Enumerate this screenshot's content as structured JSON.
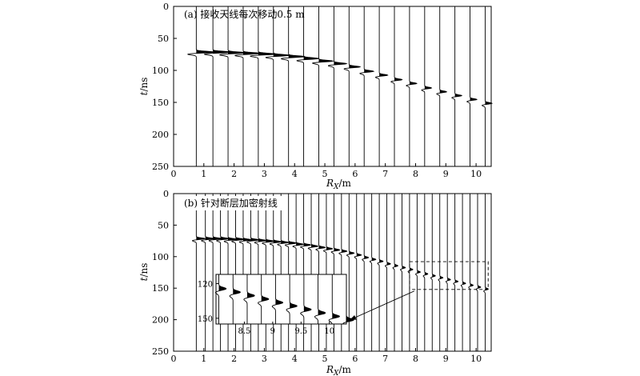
{
  "chart_data": [
    {
      "type": "line",
      "panel_label": "(a) 接收天线每次移动0.5 m",
      "xlabel_main": "R",
      "xlabel_sub": "X",
      "xlabel_unit": "/m",
      "ylabel_main": "t",
      "ylabel_unit": "/ns",
      "xlim": [
        0,
        10.5
      ],
      "ylim": [
        0,
        250
      ],
      "xticks": [
        "0",
        "1",
        "2",
        "3",
        "4",
        "5",
        "6",
        "7",
        "8",
        "9",
        "10"
      ],
      "yticks": [
        "0",
        "50",
        "100",
        "150",
        "200",
        "250"
      ],
      "trace_positions_m": [
        0.75,
        1.3,
        1.8,
        2.3,
        2.8,
        3.3,
        3.8,
        4.3,
        4.8,
        5.3,
        5.8,
        6.3,
        6.8,
        7.3,
        7.8,
        8.3,
        8.8,
        9.3,
        9.8,
        10.3
      ],
      "event_time_ns": [
        70,
        70,
        71,
        72,
        73,
        75,
        77,
        80,
        84,
        88,
        93,
        100,
        106,
        113,
        119,
        126,
        132,
        138,
        144,
        150
      ],
      "event_amplitude": [
        1.0,
        1.0,
        0.98,
        0.96,
        0.94,
        0.9,
        0.86,
        0.8,
        0.74,
        0.66,
        0.58,
        0.5,
        0.44,
        0.4,
        0.38,
        0.36,
        0.36,
        0.36,
        0.36,
        0.36
      ]
    },
    {
      "type": "line",
      "panel_label": "(b) 针对断层加密射线",
      "xlabel_main": "R",
      "xlabel_sub": "X",
      "xlabel_unit": "/m",
      "ylabel_main": "t",
      "ylabel_unit": "/ns",
      "xlim": [
        0,
        10.5
      ],
      "ylim": [
        0,
        250
      ],
      "xticks": [
        "0",
        "1",
        "2",
        "3",
        "4",
        "5",
        "6",
        "7",
        "8",
        "9",
        "10"
      ],
      "yticks": [
        "0",
        "50",
        "100",
        "150",
        "200",
        "250"
      ],
      "trace_positions_m": [
        0.75,
        1.05,
        1.3,
        1.55,
        1.8,
        2.05,
        2.3,
        2.55,
        2.8,
        3.05,
        3.3,
        3.55,
        3.8,
        4.05,
        4.3,
        4.55,
        4.8,
        5.05,
        5.3,
        5.55,
        5.8,
        6.05,
        6.3,
        6.55,
        6.8,
        7.05,
        7.3,
        7.55,
        7.8,
        8.05,
        8.3,
        8.55,
        8.8,
        9.05,
        9.3,
        9.55,
        9.8,
        10.05,
        10.3
      ],
      "event_time_ns": [
        70,
        70,
        70,
        70,
        71,
        71,
        72,
        72,
        73,
        74,
        75,
        76,
        77,
        79,
        80,
        82,
        84,
        86,
        88,
        90,
        93,
        96,
        100,
        103,
        106,
        110,
        113,
        116,
        119,
        123,
        126,
        129,
        132,
        135,
        138,
        141,
        144,
        147,
        150
      ],
      "event_amplitude": [
        1.0,
        1.0,
        1.0,
        0.99,
        0.98,
        0.97,
        0.96,
        0.95,
        0.94,
        0.92,
        0.9,
        0.88,
        0.86,
        0.83,
        0.8,
        0.77,
        0.74,
        0.7,
        0.66,
        0.62,
        0.58,
        0.54,
        0.5,
        0.47,
        0.44,
        0.42,
        0.4,
        0.39,
        0.38,
        0.37,
        0.36,
        0.36,
        0.36,
        0.36,
        0.36,
        0.36,
        0.36,
        0.36,
        0.36
      ],
      "highlight_box_x": [
        7.8,
        10.4
      ],
      "highlight_box_t": [
        108,
        152
      ],
      "inset": {
        "xlim": [
          8.0,
          10.3
        ],
        "ylim": [
          112,
          155
        ],
        "xticks": [
          "8.5",
          "9",
          "9.5",
          "10"
        ],
        "yticks": [
          "120",
          "150"
        ],
        "trace_positions_m": [
          8.05,
          8.3,
          8.55,
          8.8,
          9.05,
          9.3,
          9.55,
          9.8,
          10.05,
          10.3
        ],
        "event_time_ns": [
          123,
          126,
          129,
          132,
          135,
          138,
          141,
          144,
          147,
          150
        ]
      }
    }
  ]
}
